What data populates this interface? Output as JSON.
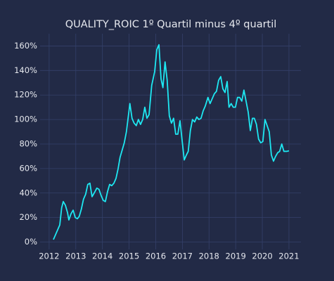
{
  "chart_data": {
    "type": "line",
    "title": "QUALITY_ROIC 1º Quartil minus 4º quartil",
    "x": [
      2012.16,
      2012.32,
      2012.4,
      2012.47,
      2012.53,
      2012.61,
      2012.69,
      2012.74,
      2012.82,
      2012.9,
      2012.98,
      2013.06,
      2013.13,
      2013.21,
      2013.29,
      2013.37,
      2013.45,
      2013.53,
      2013.61,
      2013.69,
      2013.79,
      2013.87,
      2013.95,
      2014.03,
      2014.11,
      2014.19,
      2014.27,
      2014.35,
      2014.43,
      2014.51,
      2014.59,
      2014.66,
      2014.74,
      2014.82,
      2014.9,
      2015.03,
      2015.11,
      2015.19,
      2015.27,
      2015.35,
      2015.43,
      2015.51,
      2015.59,
      2015.67,
      2015.75,
      2015.85,
      2015.96,
      2016.04,
      2016.12,
      2016.2,
      2016.27,
      2016.35,
      2016.43,
      2016.51,
      2016.59,
      2016.67,
      2016.75,
      2016.83,
      2016.91,
      2017.07,
      2017.15,
      2017.22,
      2017.3,
      2017.38,
      2017.46,
      2017.54,
      2017.62,
      2017.7,
      2017.78,
      2017.86,
      2017.96,
      2018.04,
      2018.12,
      2018.2,
      2018.28,
      2018.36,
      2018.44,
      2018.52,
      2018.6,
      2018.68,
      2018.75,
      2018.83,
      2018.91,
      2018.99,
      2019.07,
      2019.15,
      2019.23,
      2019.31,
      2019.39,
      2019.47,
      2019.55,
      2019.63,
      2019.7,
      2019.78,
      2019.86,
      2019.94,
      2020.02,
      2020.1,
      2020.18,
      2020.26,
      2020.34,
      2020.42,
      2020.5,
      2020.58,
      2020.65,
      2020.73,
      2020.81,
      2020.92,
      2021.0
    ],
    "series": [
      {
        "name": "QUALITY_ROIC",
        "color": "#1ee8f2",
        "values": [
          2,
          10,
          14,
          28,
          33,
          30,
          24,
          18,
          23,
          26,
          20,
          19,
          21,
          27,
          35,
          39,
          47,
          48,
          37,
          40,
          44,
          43,
          38,
          34,
          33,
          41,
          47,
          46,
          48,
          52,
          60,
          69,
          75,
          81,
          90,
          113,
          101,
          97,
          95,
          100,
          96,
          100,
          110,
          101,
          104,
          128,
          139,
          157,
          161,
          133,
          126,
          147,
          132,
          103,
          97,
          101,
          88,
          88,
          99,
          67,
          71,
          74,
          91,
          100,
          98,
          102,
          100,
          101,
          107,
          111,
          118,
          113,
          117,
          121,
          123,
          132,
          135,
          125,
          122,
          131,
          110,
          113,
          110,
          110,
          118,
          118,
          115,
          124,
          115,
          106,
          91,
          101,
          101,
          96,
          84,
          81,
          82,
          100,
          95,
          90,
          71,
          66,
          70,
          73,
          74,
          80,
          74,
          74,
          74.5
        ]
      }
    ],
    "xlim": [
      2011.66,
      2021.45
    ],
    "xticks": [
      2012,
      2013,
      2014,
      2015,
      2016,
      2017,
      2018,
      2019,
      2020,
      2021
    ],
    "ylim": [
      -6,
      170
    ],
    "yticks": [
      {
        "value": 0,
        "label": "0%"
      },
      {
        "value": 20,
        "label": "20%"
      },
      {
        "value": 40,
        "label": "40%"
      },
      {
        "value": 60,
        "label": "60%"
      },
      {
        "value": 80,
        "label": "80%"
      },
      {
        "value": 100,
        "label": "100%"
      },
      {
        "value": 120,
        "label": "120%"
      },
      {
        "value": 140,
        "label": "140%"
      },
      {
        "value": 160,
        "label": "160%"
      }
    ],
    "grid": true
  }
}
